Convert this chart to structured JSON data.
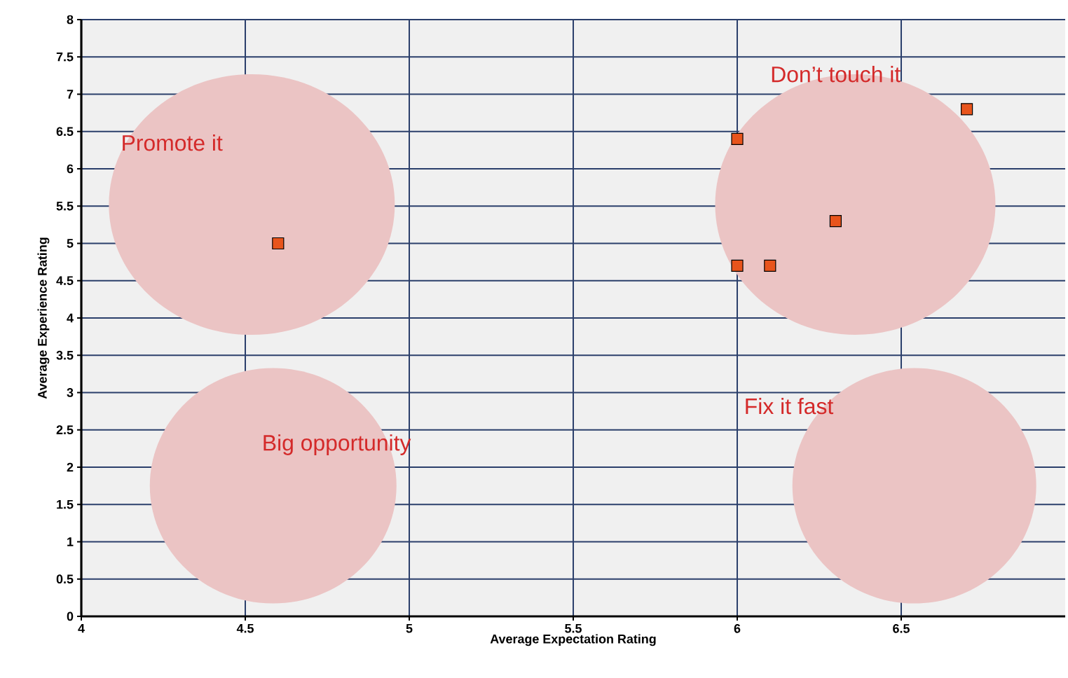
{
  "chart_data": {
    "type": "scatter",
    "xlabel": "Average Expectation Rating",
    "ylabel": "Average Experience Rating",
    "x": [
      4.6,
      6.0,
      6.7,
      6.3,
      6.0,
      6.1
    ],
    "values": [
      5.0,
      6.4,
      6.8,
      5.3,
      4.7,
      4.7
    ],
    "color": "#e8541c",
    "marker": "square",
    "grid": true,
    "xlim": [
      4,
      7
    ],
    "xticks": [
      4,
      4.5,
      5,
      5.5,
      6,
      6.5
    ],
    "ylim": [
      0,
      8
    ],
    "yticks": [
      0,
      0.5,
      1,
      1.5,
      2,
      2.5,
      3,
      3.5,
      4,
      4.5,
      5,
      5.5,
      6,
      6.5,
      7,
      7.5,
      8
    ],
    "annotations": [
      "Promote it",
      "Don’t touch it",
      "Big opportunity",
      "Fix it fast"
    ]
  }
}
